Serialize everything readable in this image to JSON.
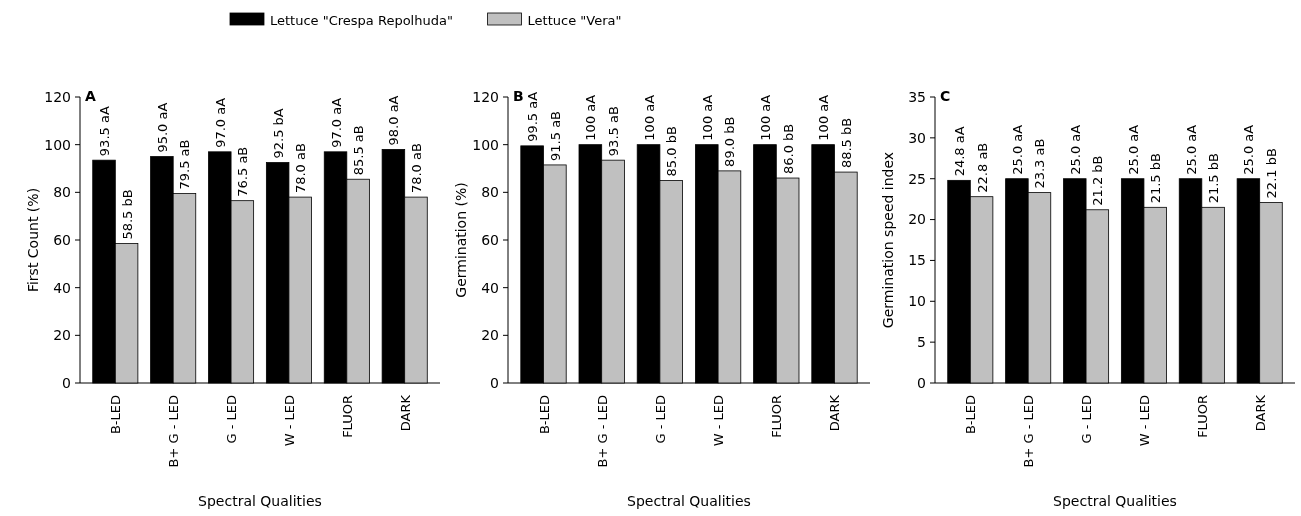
{
  "chart_data": [
    {
      "type": "bar",
      "title": "A",
      "xlabel": "Spectral Qualities",
      "ylabel": "First Count (%)",
      "categories": [
        "B-LED",
        "B+ G - LED",
        "G - LED",
        "W - LED",
        "FLUOR",
        "DARK"
      ],
      "ylim": [
        0,
        120
      ],
      "yticks": [
        0,
        20,
        40,
        60,
        80,
        100,
        120
      ],
      "legend": "top",
      "series": [
        {
          "name": "Lettuce \"Crespa Repolhuda\"",
          "color": "#000000",
          "values": [
            93.5,
            95.0,
            97.0,
            92.5,
            97.0,
            98.0
          ],
          "value_labels": [
            "93.5 aA",
            "95.0 aA",
            "97.0 aA",
            "92.5 bA",
            "97.0 aA",
            "98.0 aA"
          ]
        },
        {
          "name": "Lettuce \"Vera\"",
          "color": "#c0c0c0",
          "values": [
            58.5,
            79.5,
            76.5,
            78.0,
            85.5,
            78.0
          ],
          "value_labels": [
            "58.5 bB",
            "79.5 aB",
            "76.5 aB",
            "78.0 aB",
            "85.5 aB",
            "78.0 aB"
          ]
        }
      ]
    },
    {
      "type": "bar",
      "title": "B",
      "xlabel": "Spectral Qualities",
      "ylabel": "Germination (%)",
      "categories": [
        "B-LED",
        "B+ G - LED",
        "G - LED",
        "W - LED",
        "FLUOR",
        "DARK"
      ],
      "ylim": [
        0,
        120
      ],
      "yticks": [
        0,
        20,
        40,
        60,
        80,
        100,
        120
      ],
      "series": [
        {
          "color": "#000000",
          "values": [
            99.5,
            100,
            100,
            100,
            100,
            100
          ],
          "value_labels": [
            "99.5 aA",
            "100 aA",
            "100 aA",
            "100 aA",
            "100 aA",
            "100 aA"
          ]
        },
        {
          "color": "#c0c0c0",
          "values": [
            91.5,
            93.5,
            85.0,
            89.0,
            86.0,
            88.5
          ],
          "value_labels": [
            "91.5 aB",
            "93.5 aB",
            "85.0 bB",
            "89.0 bB",
            "86.0 bB",
            "88.5 bB"
          ]
        }
      ]
    },
    {
      "type": "bar",
      "title": "C",
      "xlabel": "Spectral Qualities",
      "ylabel": "Germination speed index",
      "categories": [
        "B-LED",
        "B+ G - LED",
        "G - LED",
        "W - LED",
        "FLUOR",
        "DARK"
      ],
      "ylim": [
        0,
        35
      ],
      "yticks": [
        0,
        5,
        10,
        15,
        20,
        25,
        30,
        35
      ],
      "series": [
        {
          "color": "#000000",
          "values": [
            24.8,
            25.0,
            25.0,
            25.0,
            25.0,
            25.0
          ],
          "value_labels": [
            "24.8 aA",
            "25.0 aA",
            "25.0 aA",
            "25.0 aA",
            "25.0 aA",
            "25.0 aA"
          ]
        },
        {
          "color": "#c0c0c0",
          "values": [
            22.8,
            23.3,
            21.2,
            21.5,
            21.5,
            22.1
          ],
          "value_labels": [
            "22.8 aB",
            "23.3 aB",
            "21.2 bB",
            "21.5 bB",
            "21.5 bB",
            "22.1 bB"
          ]
        }
      ]
    }
  ]
}
